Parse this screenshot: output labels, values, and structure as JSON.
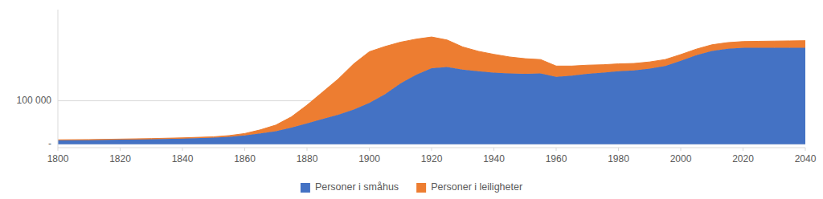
{
  "chart_data": {
    "type": "area",
    "stacked": true,
    "x": [
      1800,
      1810,
      1820,
      1830,
      1840,
      1850,
      1855,
      1860,
      1865,
      1870,
      1875,
      1880,
      1885,
      1890,
      1895,
      1900,
      1905,
      1910,
      1915,
      1920,
      1925,
      1930,
      1935,
      1940,
      1945,
      1950,
      1955,
      1960,
      1965,
      1970,
      1975,
      1980,
      1985,
      1990,
      1995,
      2000,
      2005,
      2010,
      2015,
      2020,
      2025,
      2030,
      2035,
      2040
    ],
    "series": [
      {
        "name": "Personer i småhus",
        "color": "#4472C4",
        "values": [
          9000,
          9500,
          10500,
          11500,
          13000,
          15000,
          17000,
          20000,
          25000,
          30000,
          38000,
          48000,
          58000,
          68000,
          80000,
          95000,
          115000,
          140000,
          160000,
          175000,
          178000,
          172000,
          168000,
          165000,
          163000,
          162000,
          163000,
          155000,
          158000,
          162000,
          165000,
          168000,
          170000,
          174000,
          180000,
          192000,
          205000,
          215000,
          220000,
          222000,
          222000,
          222000,
          222000,
          222000
        ]
      },
      {
        "name": "Personer i leiligheter",
        "color": "#ED7D31",
        "values": [
          1000,
          1100,
          1200,
          1400,
          1600,
          2000,
          2800,
          4500,
          8000,
          14000,
          25000,
          42000,
          62000,
          82000,
          105000,
          118000,
          110000,
          95000,
          82000,
          72000,
          62000,
          52000,
          46000,
          42000,
          38000,
          35000,
          32000,
          25000,
          22000,
          20000,
          18000,
          17000,
          16000,
          15500,
          15000,
          14500,
          14000,
          14000,
          14000,
          14500,
          15000,
          15500,
          16000,
          16500
        ]
      }
    ],
    "xlim": [
      1800,
      2040
    ],
    "xticks": [
      1800,
      1820,
      1840,
      1860,
      1880,
      1900,
      1920,
      1940,
      1960,
      1980,
      2000,
      2020,
      2040
    ],
    "ylim": [
      -8000,
      310000
    ],
    "yticks": [
      {
        "value": 0,
        "label": "-"
      },
      {
        "value": 100000,
        "label": "100 000"
      }
    ],
    "grid": true,
    "legend": "bottom"
  }
}
